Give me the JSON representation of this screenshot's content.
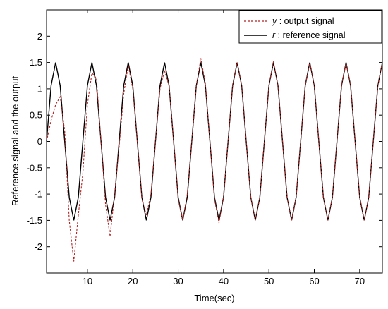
{
  "chart_data": {
    "type": "line",
    "title": "",
    "xlabel": "Time(sec)",
    "ylabel": "Reference signal and the output",
    "xlim": [
      1,
      75
    ],
    "ylim": [
      -2.5,
      2.5
    ],
    "xticks": [
      10,
      20,
      30,
      40,
      50,
      60,
      70
    ],
    "yticks": [
      -2,
      -1.5,
      -1,
      -0.5,
      0,
      0.5,
      1,
      1.5,
      2
    ],
    "grid": false,
    "legend_position": "top-right",
    "legend": [
      {
        "symbol": "y",
        "text": " : output signal",
        "style": "dashed",
        "color": "#b22222"
      },
      {
        "symbol": "r",
        "text": " : reference signal",
        "style": "solid",
        "color": "#000000"
      }
    ],
    "series": [
      {
        "name": "r : reference signal",
        "color": "#000000",
        "dash": "solid",
        "x": [
          1,
          2,
          3,
          4,
          5,
          6,
          7,
          8,
          9,
          10,
          11,
          12,
          13,
          14,
          15,
          16,
          17,
          18,
          19,
          20,
          21,
          22,
          23,
          24,
          25,
          26,
          27,
          28,
          29,
          30,
          31,
          32,
          33,
          34,
          35,
          36,
          37,
          38,
          39,
          40,
          41,
          42,
          43,
          44,
          45,
          46,
          47,
          48,
          49,
          50,
          51,
          52,
          53,
          54,
          55,
          56,
          57,
          58,
          59,
          60,
          61,
          62,
          63,
          64,
          65,
          66,
          67,
          68,
          69,
          70,
          71,
          72,
          73,
          74,
          75
        ],
        "y": [
          0,
          1.06,
          1.5,
          1.06,
          0,
          -1.06,
          -1.5,
          -1.06,
          0,
          1.06,
          1.5,
          1.06,
          0,
          -1.06,
          -1.5,
          -1.06,
          0,
          1.06,
          1.5,
          1.06,
          0,
          -1.06,
          -1.5,
          -1.06,
          0,
          1.06,
          1.5,
          1.06,
          0,
          -1.06,
          -1.5,
          -1.06,
          0,
          1.06,
          1.5,
          1.06,
          0,
          -1.06,
          -1.5,
          -1.06,
          0,
          1.06,
          1.5,
          1.06,
          0,
          -1.06,
          -1.5,
          -1.06,
          0,
          1.06,
          1.5,
          1.06,
          0,
          -1.06,
          -1.5,
          -1.06,
          0,
          1.06,
          1.5,
          1.06,
          0,
          -1.06,
          -1.5,
          -1.06,
          0,
          1.06,
          1.5,
          1.06,
          0,
          -1.06,
          -1.5,
          -1.06,
          0,
          1.06,
          1.5
        ]
      },
      {
        "name": "y : output signal",
        "color": "#b22222",
        "dash": "dashed",
        "x": [
          1,
          2,
          3,
          4,
          5,
          6,
          7,
          8,
          9,
          10,
          11,
          12,
          13,
          14,
          15,
          16,
          17,
          18,
          19,
          20,
          21,
          22,
          23,
          24,
          25,
          26,
          27,
          28,
          29,
          30,
          31,
          32,
          33,
          34,
          35,
          36,
          37,
          38,
          39,
          40,
          41,
          42,
          43,
          44,
          45,
          46,
          47,
          48,
          49,
          50,
          51,
          52,
          53,
          54,
          55,
          56,
          57,
          58,
          59,
          60,
          61,
          62,
          63,
          64,
          65,
          66,
          67,
          68,
          69,
          70,
          71,
          72,
          73,
          74,
          75
        ],
        "y": [
          0,
          0.4,
          0.7,
          0.85,
          0.2,
          -1.5,
          -2.28,
          -1.4,
          -0.6,
          0.7,
          1.3,
          1.2,
          0,
          -1.2,
          -1.8,
          -1.0,
          -0.1,
          0.9,
          1.45,
          1.0,
          0,
          -1.1,
          -1.4,
          -1.0,
          0,
          1.0,
          1.35,
          1.05,
          0,
          -1.1,
          -1.5,
          -1.0,
          0,
          1.05,
          1.58,
          1.1,
          0,
          -1.1,
          -1.55,
          -1.05,
          0,
          1.06,
          1.5,
          1.06,
          0,
          -1.06,
          -1.5,
          -1.06,
          0,
          1.06,
          1.52,
          1.06,
          0,
          -1.06,
          -1.5,
          -1.06,
          0,
          1.06,
          1.5,
          1.06,
          0,
          -1.06,
          -1.5,
          -1.06,
          0,
          1.06,
          1.5,
          1.06,
          0,
          -1.06,
          -1.5,
          -1.06,
          0,
          1.06,
          1.5
        ]
      }
    ]
  }
}
